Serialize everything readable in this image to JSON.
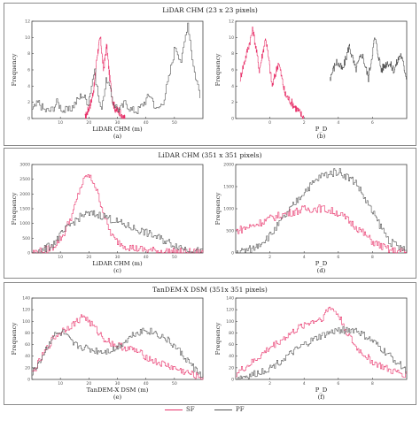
{
  "groups": [
    {
      "title": "LiDAR CHM (23 x 23 pixels)"
    },
    {
      "title": "LiDAR CHM (351 x 351 pixels)"
    },
    {
      "title": "TanDEM-X DSM (351x 351 pixels)"
    }
  ],
  "legend": {
    "sf": {
      "label": "SF",
      "color": "#e8326a"
    },
    "pf": {
      "label": "PF",
      "color": "#555555"
    }
  },
  "chart_data": [
    {
      "id": "a",
      "type": "line",
      "panel_label": "(a)",
      "xlabel": "LiDAR CHM (m)",
      "ylabel": "Frequency",
      "xlim": [
        -5,
        50
      ],
      "ylim": [
        0,
        12
      ],
      "xticks": [
        "10",
        "20",
        "30",
        "40",
        "50"
      ],
      "yticks": [
        "0",
        "2",
        "4",
        "6",
        "8",
        "10",
        "12"
      ],
      "series": [
        {
          "name": "SF",
          "x": [
            12,
            13,
            14,
            15,
            16,
            17,
            18,
            19,
            20,
            21,
            22,
            23,
            24,
            25
          ],
          "y": [
            0,
            1,
            2,
            4,
            8,
            10,
            6,
            9,
            5,
            2,
            1,
            1,
            0,
            0
          ]
        },
        {
          "name": "PF",
          "x": [
            -5,
            -3,
            -1,
            1,
            3,
            5,
            7,
            9,
            11,
            13,
            15,
            17,
            19,
            21,
            23,
            25,
            27,
            29,
            31,
            33,
            35,
            37,
            39,
            41,
            43,
            45,
            47,
            49
          ],
          "y": [
            1,
            2,
            1,
            1,
            2,
            1,
            1,
            2,
            3,
            2,
            6,
            1,
            5,
            2,
            1,
            2,
            1,
            1,
            2,
            3,
            1,
            2,
            5,
            9,
            7,
            12,
            6,
            3
          ]
        }
      ]
    },
    {
      "id": "b",
      "type": "line",
      "panel_label": "(b)",
      "xlabel": "P_D",
      "ylabel": "Frequency",
      "xlim": [
        -1,
        7
      ],
      "ylim": [
        0,
        12
      ],
      "xticks": [
        "0",
        "2",
        "4",
        "6"
      ],
      "yticks": [
        "0",
        "2",
        "4",
        "6",
        "8",
        "10",
        "12"
      ],
      "series": [
        {
          "name": "SF",
          "x": [
            -0.8,
            -0.5,
            -0.2,
            0.1,
            0.4,
            0.7,
            1.0,
            1.3,
            1.6,
            1.9,
            2.2
          ],
          "y": [
            5,
            8,
            11,
            6,
            10,
            4,
            7,
            3,
            2,
            1,
            0
          ]
        },
        {
          "name": "PF",
          "x": [
            3.4,
            3.7,
            4.0,
            4.3,
            4.6,
            4.9,
            5.2,
            5.5,
            5.8,
            6.1,
            6.4,
            6.7,
            7.0
          ],
          "y": [
            5,
            7,
            6,
            9,
            6,
            8,
            5,
            10,
            6,
            7,
            6,
            8,
            5
          ]
        }
      ]
    },
    {
      "id": "c",
      "type": "line",
      "panel_label": "(c)",
      "xlabel": "LiDAR CHM (m)",
      "ylabel": "Frequency",
      "xlim": [
        0,
        50
      ],
      "ylim": [
        0,
        3000
      ],
      "xticks": [
        "10",
        "20",
        "30",
        "40",
        "50"
      ],
      "yticks": [
        "0",
        "500",
        "1000",
        "1500",
        "2000",
        "2500",
        "3000"
      ],
      "series": [
        {
          "name": "SF",
          "x": [
            0,
            3,
            6,
            9,
            12,
            14,
            16,
            18,
            20,
            22,
            24,
            27,
            30,
            34,
            38,
            42,
            46,
            50
          ],
          "y": [
            20,
            60,
            200,
            600,
            1400,
            2200,
            2650,
            2400,
            1700,
            900,
            450,
            250,
            150,
            90,
            60,
            40,
            20,
            10
          ]
        },
        {
          "name": "PF",
          "x": [
            0,
            3,
            6,
            9,
            12,
            15,
            18,
            21,
            24,
            27,
            30,
            33,
            36,
            39,
            42,
            45,
            48,
            50
          ],
          "y": [
            20,
            80,
            300,
            700,
            1050,
            1300,
            1320,
            1250,
            1100,
            950,
            820,
            700,
            560,
            400,
            260,
            140,
            70,
            30
          ]
        }
      ]
    },
    {
      "id": "d",
      "type": "line",
      "panel_label": "(d)",
      "xlabel": "P_D",
      "ylabel": "Frequency",
      "xlim": [
        0,
        10
      ],
      "ylim": [
        0,
        2000
      ],
      "xticks": [
        "2",
        "4",
        "6",
        "8"
      ],
      "yticks": [
        "0",
        "500",
        "1000",
        "1500",
        "2000"
      ],
      "series": [
        {
          "name": "SF",
          "x": [
            0,
            1,
            2,
            3,
            4,
            5,
            6,
            7,
            8,
            9,
            10
          ],
          "y": [
            500,
            620,
            780,
            900,
            990,
            1010,
            900,
            600,
            250,
            60,
            20
          ]
        },
        {
          "name": "PF",
          "x": [
            0,
            1,
            2,
            3,
            4,
            5,
            6,
            7,
            8,
            9,
            10
          ],
          "y": [
            10,
            100,
            400,
            900,
            1400,
            1750,
            1850,
            1600,
            900,
            250,
            30
          ]
        }
      ]
    },
    {
      "id": "e",
      "type": "line",
      "panel_label": "(e)",
      "xlabel": "TanDEM-X DSM (m)",
      "ylabel": "Frequency",
      "xlim": [
        0,
        50
      ],
      "ylim": [
        0,
        140
      ],
      "xticks": [
        "10",
        "20",
        "30",
        "40",
        "50"
      ],
      "yticks": [
        "0",
        "20",
        "40",
        "60",
        "80",
        "100",
        "120",
        "140"
      ],
      "series": [
        {
          "name": "SF",
          "x": [
            0,
            3,
            6,
            9,
            12,
            15,
            18,
            21,
            24,
            27,
            30,
            33,
            36,
            39,
            42,
            45,
            48,
            50
          ],
          "y": [
            10,
            40,
            70,
            85,
            95,
            110,
            90,
            70,
            60,
            55,
            50,
            40,
            30,
            25,
            18,
            12,
            6,
            3
          ]
        },
        {
          "name": "PF",
          "x": [
            0,
            3,
            6,
            9,
            12,
            15,
            18,
            21,
            24,
            27,
            30,
            33,
            36,
            39,
            42,
            45,
            48,
            50
          ],
          "y": [
            10,
            40,
            75,
            80,
            60,
            55,
            50,
            48,
            52,
            65,
            80,
            85,
            80,
            70,
            55,
            35,
            15,
            5
          ]
        }
      ]
    },
    {
      "id": "f",
      "type": "line",
      "panel_label": "(f)",
      "xlabel": "P_D",
      "ylabel": "Frequency",
      "xlim": [
        0,
        10
      ],
      "ylim": [
        0,
        140
      ],
      "xticks": [
        "2",
        "4",
        "6",
        "8"
      ],
      "yticks": [
        "0",
        "20",
        "40",
        "60",
        "80",
        "100",
        "120",
        "140"
      ],
      "series": [
        {
          "name": "SF",
          "x": [
            0,
            1,
            2,
            3,
            4,
            5,
            5.5,
            6,
            6.5,
            7,
            8,
            9,
            10
          ],
          "y": [
            10,
            30,
            55,
            75,
            95,
            105,
            125,
            110,
            80,
            55,
            30,
            15,
            8
          ]
        },
        {
          "name": "PF",
          "x": [
            0,
            1,
            2,
            3,
            4,
            5,
            6,
            7,
            8,
            9,
            10
          ],
          "y": [
            2,
            8,
            20,
            40,
            60,
            75,
            85,
            85,
            65,
            40,
            15
          ]
        }
      ]
    }
  ]
}
